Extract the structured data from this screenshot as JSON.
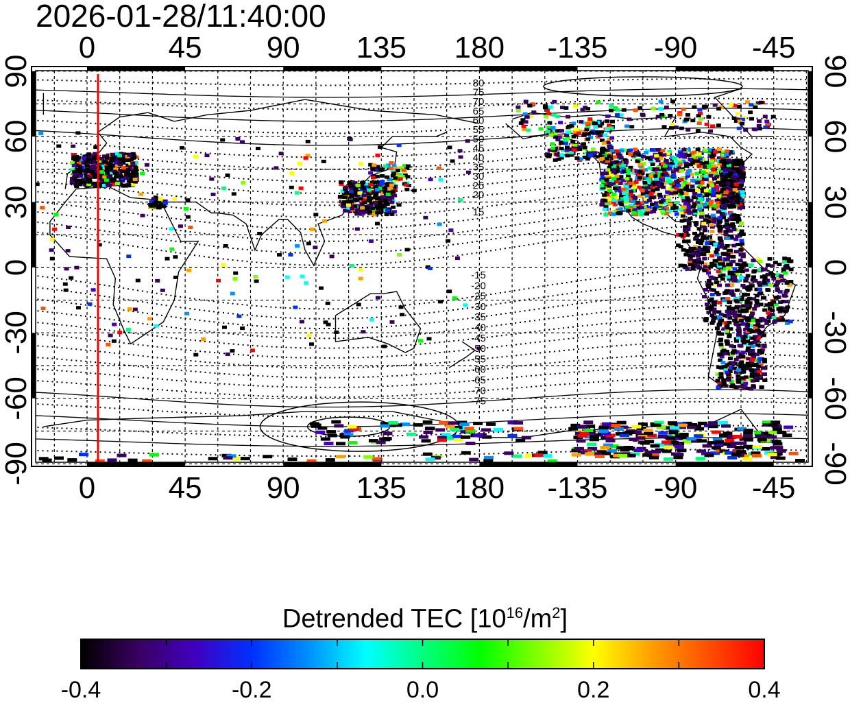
{
  "title": "2026-01-28/11:40:00",
  "map": {
    "lon_ticks_top": [
      "0",
      "45",
      "90",
      "135",
      "180",
      "-135",
      "-90",
      "-45"
    ],
    "lon_ticks_bottom": [
      "0",
      "45",
      "90",
      "135",
      "180",
      "-135",
      "-90",
      "-45"
    ],
    "lat_ticks_left": [
      "90",
      "60",
      "30",
      "0",
      "-30",
      "-60",
      "-90"
    ],
    "lat_ticks_right": [
      "90",
      "60",
      "30",
      "0",
      "-30",
      "-60",
      "-90"
    ],
    "maglat_labels_north": [
      "80",
      "75",
      "70",
      "65",
      "60",
      "55",
      "50",
      "45",
      "40",
      "35",
      "30",
      "25",
      "20",
      "15"
    ],
    "maglat_labels_south": [
      "-15",
      "-20",
      "-25",
      "-30",
      "-35",
      "-40",
      "-45",
      "-50",
      "-55",
      "-60",
      "-65",
      "-70",
      "-75"
    ],
    "marker_line_lon": 5,
    "marker_line_color": "#ff0000"
  },
  "colorbar": {
    "title_main": "Detrended TEC  [10",
    "title_exp": "16",
    "title_unit": "/m",
    "title_exp2": "2",
    "title_end": "]",
    "labels": [
      "-0.4",
      "-0.2",
      "0.0",
      "0.2",
      "0.4"
    ],
    "range": [
      -0.4,
      0.4
    ],
    "colors": [
      "#000000",
      "#3a0060",
      "#4000c0",
      "#0030ff",
      "#0090ff",
      "#00ffff",
      "#00ff80",
      "#00ff00",
      "#80ff00",
      "#ffff00",
      "#ffa000",
      "#ff5000",
      "#ff0000"
    ]
  }
}
